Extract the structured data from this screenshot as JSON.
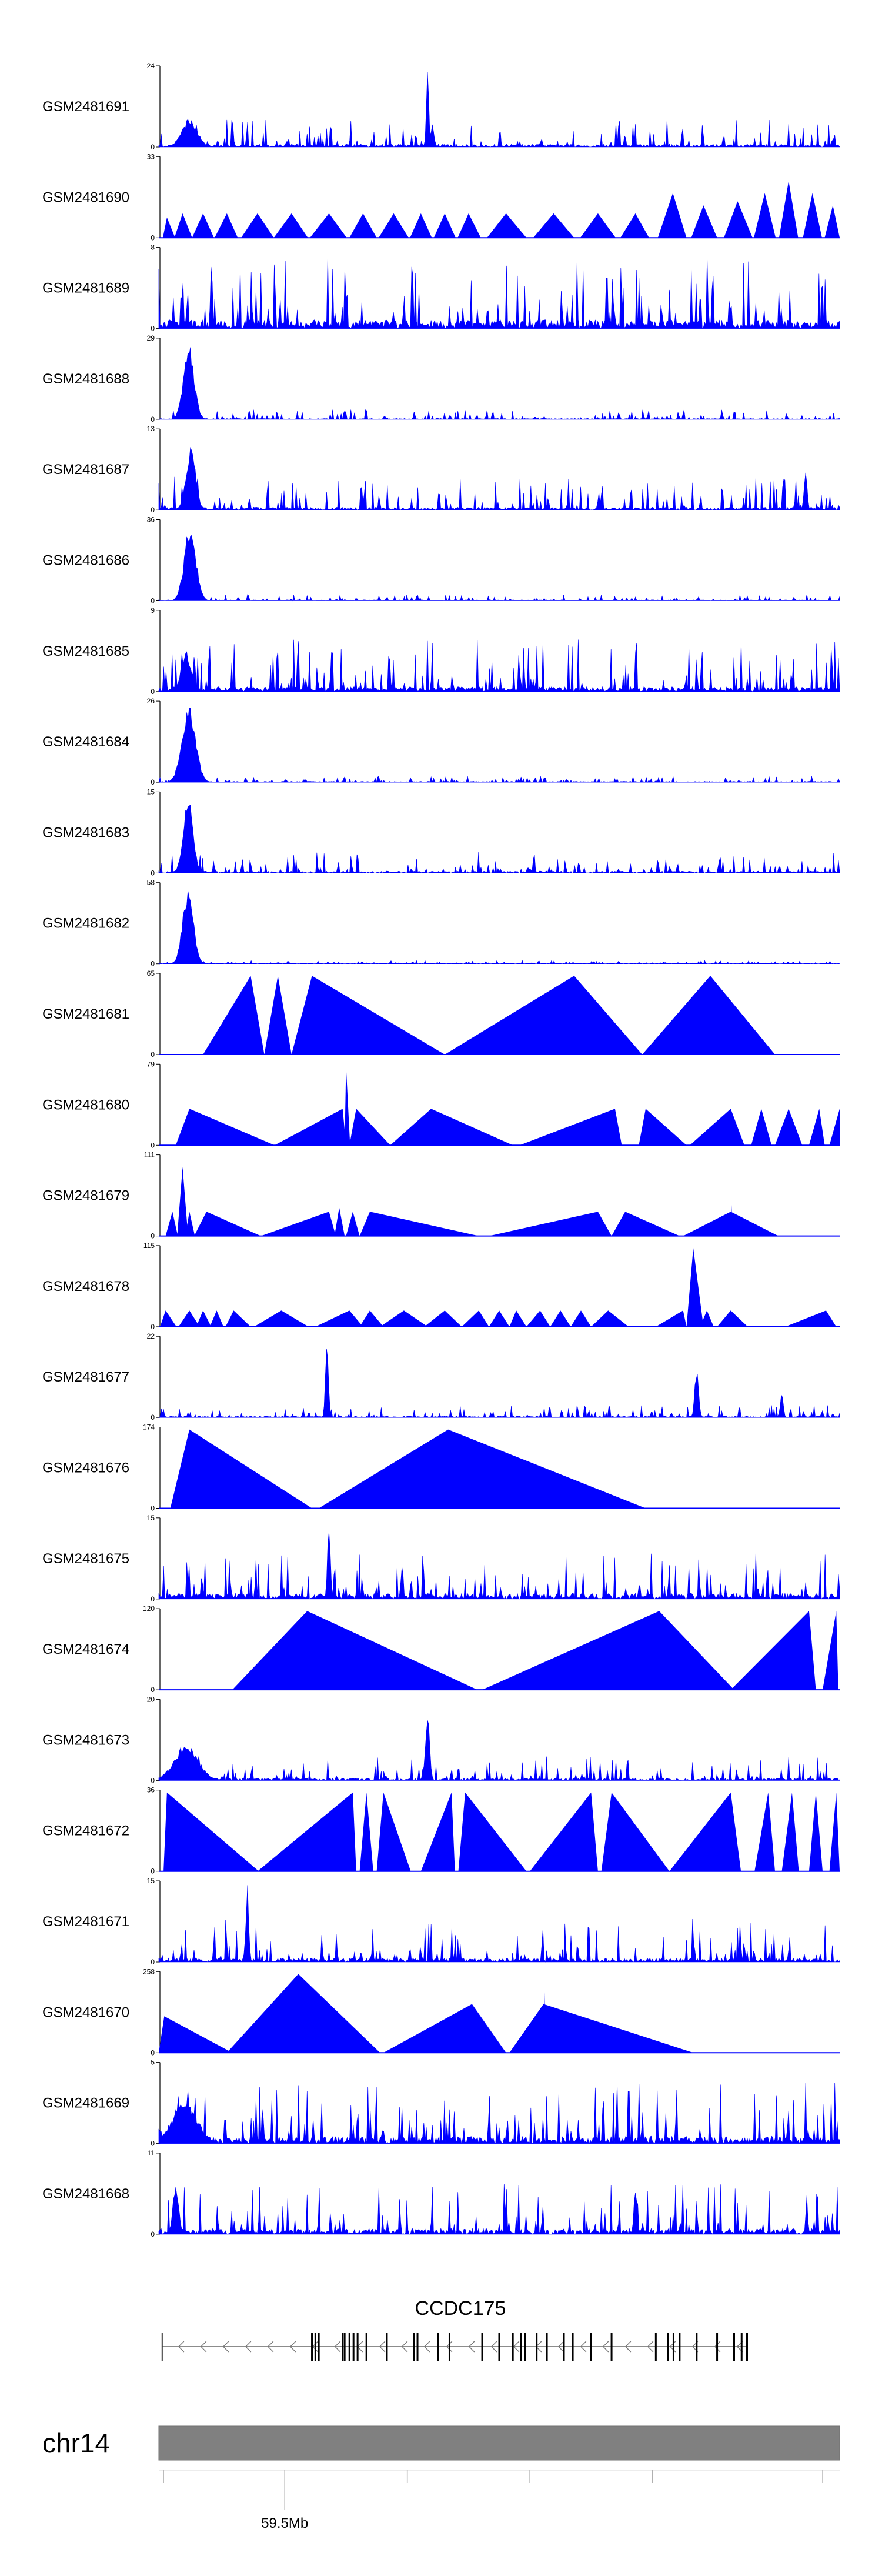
{
  "chart_data": {
    "type": "area",
    "title": "",
    "track_color": "#0000ff",
    "axis_color": "#000000",
    "x_range": [
      0,
      100
    ],
    "tracks": [
      {
        "name": "GSM2481691",
        "ymax": 24,
        "ymin": 0,
        "style": "noise",
        "seed": 11,
        "base": 0.06,
        "jitter": 0.28,
        "peaks": [
          {
            "x": 4.5,
            "w": 1.6,
            "h": 0.35
          },
          {
            "x": 39.5,
            "w": 0.25,
            "h": 1.0
          },
          {
            "x": 40.2,
            "w": 0.3,
            "h": 0.3
          }
        ]
      },
      {
        "name": "GSM2481690",
        "ymax": 33,
        "ymin": 0,
        "style": "tri",
        "seed": 12,
        "peaks": [
          {
            "x": 1.2,
            "l": 0.6,
            "r": 1.2,
            "h": 0.25
          },
          {
            "x": 3.5,
            "l": 1.2,
            "r": 1.4,
            "h": 0.3
          },
          {
            "x": 6.5,
            "l": 1.6,
            "r": 1.6,
            "h": 0.3
          },
          {
            "x": 10.0,
            "l": 1.8,
            "r": 1.6,
            "h": 0.3
          },
          {
            "x": 14.5,
            "l": 2.4,
            "r": 2.4,
            "h": 0.3
          },
          {
            "x": 19.5,
            "l": 2.6,
            "r": 2.4,
            "h": 0.3
          },
          {
            "x": 25.0,
            "l": 2.8,
            "r": 2.6,
            "h": 0.3
          },
          {
            "x": 30.0,
            "l": 2.0,
            "r": 2.0,
            "h": 0.3
          },
          {
            "x": 34.5,
            "l": 2.2,
            "r": 2.2,
            "h": 0.3
          },
          {
            "x": 38.5,
            "l": 1.6,
            "r": 1.6,
            "h": 0.3
          },
          {
            "x": 42.0,
            "l": 1.6,
            "r": 1.6,
            "h": 0.3
          },
          {
            "x": 45.5,
            "l": 1.6,
            "r": 1.8,
            "h": 0.3
          },
          {
            "x": 51.0,
            "l": 2.8,
            "r": 3.0,
            "h": 0.3
          },
          {
            "x": 58.0,
            "l": 3.0,
            "r": 3.0,
            "h": 0.3
          },
          {
            "x": 64.5,
            "l": 2.6,
            "r": 2.6,
            "h": 0.3
          },
          {
            "x": 70.0,
            "l": 2.2,
            "r": 2.0,
            "h": 0.3
          },
          {
            "x": 75.5,
            "l": 2.2,
            "r": 2.0,
            "h": 0.55
          },
          {
            "x": 80.0,
            "l": 1.8,
            "r": 2.0,
            "h": 0.4
          },
          {
            "x": 85.0,
            "l": 2.0,
            "r": 2.2,
            "h": 0.45
          },
          {
            "x": 89.0,
            "l": 1.6,
            "r": 1.6,
            "h": 0.55
          },
          {
            "x": 92.5,
            "l": 1.4,
            "r": 1.4,
            "h": 0.7
          },
          {
            "x": 96.0,
            "l": 1.4,
            "r": 1.4,
            "h": 0.55
          },
          {
            "x": 99.0,
            "l": 1.2,
            "r": 1.0,
            "h": 0.4
          }
        ]
      },
      {
        "name": "GSM2481689",
        "ymax": 8,
        "ymin": 0,
        "style": "noise",
        "seed": 13,
        "base": 0.18,
        "jitter": 0.75,
        "peaks": []
      },
      {
        "name": "GSM2481688",
        "ymax": 29,
        "ymin": 0,
        "style": "noise",
        "seed": 14,
        "base": 0.02,
        "jitter": 0.1,
        "peaks": [
          {
            "x": 4.4,
            "w": 1.1,
            "h": 0.95
          }
        ]
      },
      {
        "name": "GSM2481687",
        "ymax": 13,
        "ymin": 0,
        "style": "noise",
        "seed": 15,
        "base": 0.06,
        "jitter": 0.35,
        "peaks": [
          {
            "x": 4.7,
            "w": 1.0,
            "h": 0.8
          },
          {
            "x": 95.0,
            "w": 0.3,
            "h": 0.55
          }
        ]
      },
      {
        "name": "GSM2481686",
        "ymax": 36,
        "ymin": 0,
        "style": "noise",
        "seed": 16,
        "base": 0.02,
        "jitter": 0.06,
        "peaks": [
          {
            "x": 4.6,
            "w": 1.2,
            "h": 0.95
          }
        ]
      },
      {
        "name": "GSM2481685",
        "ymax": 9,
        "ymin": 0,
        "style": "noise",
        "seed": 17,
        "base": 0.1,
        "jitter": 0.55,
        "peaks": [
          {
            "x": 4.0,
            "w": 1.0,
            "h": 0.5
          }
        ]
      },
      {
        "name": "GSM2481684",
        "ymax": 26,
        "ymin": 0,
        "style": "noise",
        "seed": 18,
        "base": 0.02,
        "jitter": 0.06,
        "peaks": [
          {
            "x": 4.4,
            "w": 1.4,
            "h": 0.95
          }
        ]
      },
      {
        "name": "GSM2481683",
        "ymax": 15,
        "ymin": 0,
        "style": "noise",
        "seed": 19,
        "base": 0.04,
        "jitter": 0.22,
        "peaks": [
          {
            "x": 4.3,
            "w": 1.0,
            "h": 0.95
          }
        ]
      },
      {
        "name": "GSM2481682",
        "ymax": 58,
        "ymin": 0,
        "style": "noise",
        "seed": 20,
        "base": 0.01,
        "jitter": 0.03,
        "peaks": [
          {
            "x": 4.3,
            "w": 1.1,
            "h": 0.95
          }
        ]
      },
      {
        "name": "GSM2481681",
        "ymax": 65,
        "ymin": 0,
        "style": "tri",
        "seed": 21,
        "peaks": [
          {
            "x": 13.5,
            "l": 7.0,
            "r": 2.0,
            "h": 0.97
          },
          {
            "x": 17.5,
            "l": 2.0,
            "r": 2.0,
            "h": 0.97
          },
          {
            "x": 22.5,
            "l": 3.0,
            "r": 19.5,
            "h": 0.97
          },
          {
            "x": 61.0,
            "l": 19.0,
            "r": 10.0,
            "h": 0.97
          },
          {
            "x": 81.0,
            "l": 10.0,
            "r": 9.5,
            "h": 0.97
          }
        ]
      },
      {
        "name": "GSM2481680",
        "ymax": 79,
        "ymin": 0,
        "style": "tri",
        "seed": 22,
        "peaks": [
          {
            "x": 4.5,
            "l": 2.0,
            "r": 12.5,
            "h": 0.45
          },
          {
            "x": 27.0,
            "l": 10.0,
            "r": 0.5,
            "h": 0.45
          },
          {
            "x": 27.5,
            "l": 0.2,
            "r": 0.6,
            "h": 0.97
          },
          {
            "x": 29.0,
            "l": 1.0,
            "r": 5.0,
            "h": 0.45
          },
          {
            "x": 40.0,
            "l": 6.0,
            "r": 12.0,
            "h": 0.45
          },
          {
            "x": 67.0,
            "l": 14.0,
            "r": 1.0,
            "h": 0.45
          },
          {
            "x": 71.5,
            "l": 1.0,
            "r": 6.0,
            "h": 0.45
          },
          {
            "x": 84.0,
            "l": 6.0,
            "r": 2.0,
            "h": 0.45
          },
          {
            "x": 88.5,
            "l": 1.5,
            "r": 1.5,
            "h": 0.45
          },
          {
            "x": 92.5,
            "l": 2.0,
            "r": 2.0,
            "h": 0.45
          },
          {
            "x": 97.0,
            "l": 1.5,
            "r": 0.8,
            "h": 0.45
          },
          {
            "x": 100.0,
            "l": 1.5,
            "r": 0.2,
            "h": 0.45
          }
        ]
      },
      {
        "name": "GSM2481679",
        "ymax": 111,
        "ymin": 0,
        "style": "tri",
        "seed": 23,
        "peaks": [
          {
            "x": 2.0,
            "l": 1.0,
            "r": 0.8,
            "h": 0.3
          },
          {
            "x": 3.5,
            "l": 0.8,
            "r": 0.8,
            "h": 0.85
          },
          {
            "x": 4.5,
            "l": 0.6,
            "r": 0.8,
            "h": 0.3
          },
          {
            "x": 7.0,
            "l": 1.8,
            "r": 8.0,
            "h": 0.3
          },
          {
            "x": 25.0,
            "l": 10.0,
            "r": 1.0,
            "h": 0.3
          },
          {
            "x": 26.5,
            "l": 0.7,
            "r": 0.8,
            "h": 0.35
          },
          {
            "x": 28.5,
            "l": 1.0,
            "r": 1.0,
            "h": 0.3
          },
          {
            "x": 31.0,
            "l": 1.5,
            "r": 16.0,
            "h": 0.3
          },
          {
            "x": 64.5,
            "l": 16.0,
            "r": 2.0,
            "h": 0.3
          },
          {
            "x": 68.5,
            "l": 2.0,
            "r": 8.0,
            "h": 0.3
          },
          {
            "x": 84.0,
            "l": 7.0,
            "r": 7.0,
            "h": 0.3
          },
          {
            "x": 84.1,
            "l": 0.1,
            "r": 0.2,
            "h": 0.4
          }
        ]
      },
      {
        "name": "GSM2481678",
        "ymax": 115,
        "ymin": 0,
        "style": "tri",
        "seed": 24,
        "peaks": [
          {
            "x": 1.0,
            "l": 0.8,
            "r": 1.6,
            "h": 0.2
          },
          {
            "x": 4.5,
            "l": 1.6,
            "r": 1.5,
            "h": 0.2
          },
          {
            "x": 6.5,
            "l": 1.0,
            "r": 1.2,
            "h": 0.2
          },
          {
            "x": 8.5,
            "l": 1.0,
            "r": 1.0,
            "h": 0.2
          },
          {
            "x": 11.0,
            "l": 1.2,
            "r": 2.5,
            "h": 0.2
          },
          {
            "x": 18.0,
            "l": 4.0,
            "r": 4.0,
            "h": 0.2
          },
          {
            "x": 28.0,
            "l": 5.0,
            "r": 2.0,
            "h": 0.2
          },
          {
            "x": 31.0,
            "l": 1.5,
            "r": 2.0,
            "h": 0.2
          },
          {
            "x": 36.0,
            "l": 3.5,
            "r": 3.5,
            "h": 0.2
          },
          {
            "x": 42.0,
            "l": 3.0,
            "r": 2.5,
            "h": 0.2
          },
          {
            "x": 47.0,
            "l": 2.5,
            "r": 1.5,
            "h": 0.2
          },
          {
            "x": 50.0,
            "l": 1.5,
            "r": 1.5,
            "h": 0.2
          },
          {
            "x": 52.5,
            "l": 1.0,
            "r": 1.5,
            "h": 0.2
          },
          {
            "x": 56.0,
            "l": 2.0,
            "r": 1.5,
            "h": 0.2
          },
          {
            "x": 59.0,
            "l": 1.5,
            "r": 1.5,
            "h": 0.2
          },
          {
            "x": 62.0,
            "l": 1.5,
            "r": 1.5,
            "h": 0.2
          },
          {
            "x": 66.0,
            "l": 2.5,
            "r": 3.0,
            "h": 0.2
          },
          {
            "x": 77.0,
            "l": 4.0,
            "r": 0.5,
            "h": 0.2
          },
          {
            "x": 78.5,
            "l": 1.0,
            "r": 1.5,
            "h": 0.97
          },
          {
            "x": 80.5,
            "l": 1.0,
            "r": 1.0,
            "h": 0.2
          },
          {
            "x": 84.0,
            "l": 2.0,
            "r": 2.5,
            "h": 0.2
          },
          {
            "x": 98.0,
            "l": 6.0,
            "r": 1.5,
            "h": 0.2
          }
        ]
      },
      {
        "name": "GSM2481677",
        "ymax": 22,
        "ymin": 0,
        "style": "noise",
        "seed": 25,
        "base": 0.03,
        "jitter": 0.12,
        "peaks": [
          {
            "x": 24.7,
            "w": 0.3,
            "h": 0.97
          },
          {
            "x": 79.0,
            "w": 0.4,
            "h": 0.6
          },
          {
            "x": 91.5,
            "w": 0.3,
            "h": 0.35
          }
        ]
      },
      {
        "name": "GSM2481676",
        "ymax": 174,
        "ymin": 0,
        "style": "tri",
        "seed": 26,
        "peaks": [
          {
            "x": 4.5,
            "l": 2.8,
            "r": 18.0,
            "h": 0.97
          },
          {
            "x": 42.5,
            "l": 19.0,
            "r": 29.0,
            "h": 0.97
          }
        ]
      },
      {
        "name": "GSM2481675",
        "ymax": 15,
        "ymin": 0,
        "style": "noise",
        "seed": 27,
        "base": 0.12,
        "jitter": 0.45,
        "peaks": [
          {
            "x": 25.0,
            "w": 0.3,
            "h": 0.97
          }
        ]
      },
      {
        "name": "GSM2481674",
        "ymax": 120,
        "ymin": 0,
        "style": "tri",
        "seed": 28,
        "peaks": [
          {
            "x": 21.8,
            "l": 11.0,
            "r": 25.0,
            "h": 0.97
          },
          {
            "x": 73.5,
            "l": 26.0,
            "r": 11.0,
            "h": 0.97
          },
          {
            "x": 95.5,
            "l": 11.5,
            "r": 1.0,
            "h": 0.97
          },
          {
            "x": 99.5,
            "l": 2.0,
            "r": 0.3,
            "h": 0.97
          }
        ]
      },
      {
        "name": "GSM2481673",
        "ymax": 20,
        "ymin": 0,
        "style": "noise",
        "seed": 29,
        "base": 0.05,
        "jitter": 0.25,
        "peaks": [
          {
            "x": 4.0,
            "w": 2.5,
            "h": 0.45
          },
          {
            "x": 39.5,
            "w": 0.4,
            "h": 0.97
          }
        ]
      },
      {
        "name": "GSM2481672",
        "ymax": 36,
        "ymin": 0,
        "style": "tri",
        "seed": 30,
        "peaks": [
          {
            "x": 1.2,
            "l": 0.5,
            "r": 13.5,
            "h": 0.97
          },
          {
            "x": 28.5,
            "l": 14.0,
            "r": 0.5,
            "h": 0.97
          },
          {
            "x": 30.5,
            "l": 1.0,
            "r": 1.0,
            "h": 0.97
          },
          {
            "x": 33.0,
            "l": 1.0,
            "r": 4.0,
            "h": 0.97
          },
          {
            "x": 43.0,
            "l": 4.5,
            "r": 0.5,
            "h": 0.97
          },
          {
            "x": 45.0,
            "l": 1.0,
            "r": 9.0,
            "h": 0.97
          },
          {
            "x": 63.5,
            "l": 9.0,
            "r": 1.0,
            "h": 0.97
          },
          {
            "x": 66.5,
            "l": 1.5,
            "r": 8.5,
            "h": 0.97
          },
          {
            "x": 84.0,
            "l": 9.0,
            "r": 1.5,
            "h": 0.97
          },
          {
            "x": 89.5,
            "l": 2.0,
            "r": 1.0,
            "h": 0.97
          },
          {
            "x": 93.0,
            "l": 1.5,
            "r": 1.0,
            "h": 0.97
          },
          {
            "x": 96.5,
            "l": 1.0,
            "r": 1.0,
            "h": 0.97
          },
          {
            "x": 99.5,
            "l": 1.0,
            "r": 0.5,
            "h": 0.97
          }
        ]
      },
      {
        "name": "GSM2481671",
        "ymax": 15,
        "ymin": 0,
        "style": "noise",
        "seed": 31,
        "base": 0.08,
        "jitter": 0.45,
        "peaks": [
          {
            "x": 13.0,
            "w": 0.3,
            "h": 0.97
          }
        ]
      },
      {
        "name": "GSM2481670",
        "ymax": 258,
        "ymin": 0,
        "style": "tri",
        "seed": 32,
        "peaks": [
          {
            "x": 0.8,
            "l": 0.8,
            "r": 10.0,
            "h": 0.45
          },
          {
            "x": 20.5,
            "l": 10.5,
            "r": 12.0,
            "h": 0.97
          },
          {
            "x": 46.0,
            "l": 13.0,
            "r": 5.0,
            "h": 0.6
          },
          {
            "x": 56.5,
            "l": 5.0,
            "r": 22.0,
            "h": 0.6
          },
          {
            "x": 56.7,
            "l": 0.1,
            "r": 0.1,
            "h": 0.75
          }
        ]
      },
      {
        "name": "GSM2481669",
        "ymax": 5,
        "ymin": 0,
        "style": "noise",
        "seed": 33,
        "base": 0.15,
        "jitter": 0.6,
        "peaks": [
          {
            "x": 3.8,
            "w": 2.5,
            "h": 0.55
          }
        ]
      },
      {
        "name": "GSM2481668",
        "ymax": 11,
        "ymin": 0,
        "style": "noise",
        "seed": 34,
        "base": 0.12,
        "jitter": 0.5,
        "peaks": [
          {
            "x": 2.5,
            "w": 0.6,
            "h": 0.6
          },
          {
            "x": 70.0,
            "w": 0.3,
            "h": 0.6
          }
        ]
      }
    ],
    "gene": {
      "name": "CCDC175",
      "strand": "-",
      "start": 0.5,
      "end": 86.5,
      "exons": [
        22.5,
        23.0,
        23.5,
        27.0,
        27.3,
        28.0,
        28.6,
        29.2,
        30.5,
        33.5,
        37.5,
        38.0,
        41.0,
        42.7,
        47.5,
        50.0,
        52.0,
        53.2,
        53.8,
        55.5,
        57.0,
        59.5,
        60.8,
        63.5,
        66.5,
        73.0,
        74.8,
        75.6,
        76.5,
        79.0,
        82.0,
        84.5,
        85.6,
        86.4
      ]
    },
    "chromosome": {
      "name": "chr14",
      "ticks": [
        0.7,
        18.5,
        36.5,
        54.5,
        72.5,
        97.5
      ],
      "labeled_tick": {
        "at": 18.5,
        "label": "59.5Mb"
      }
    }
  }
}
